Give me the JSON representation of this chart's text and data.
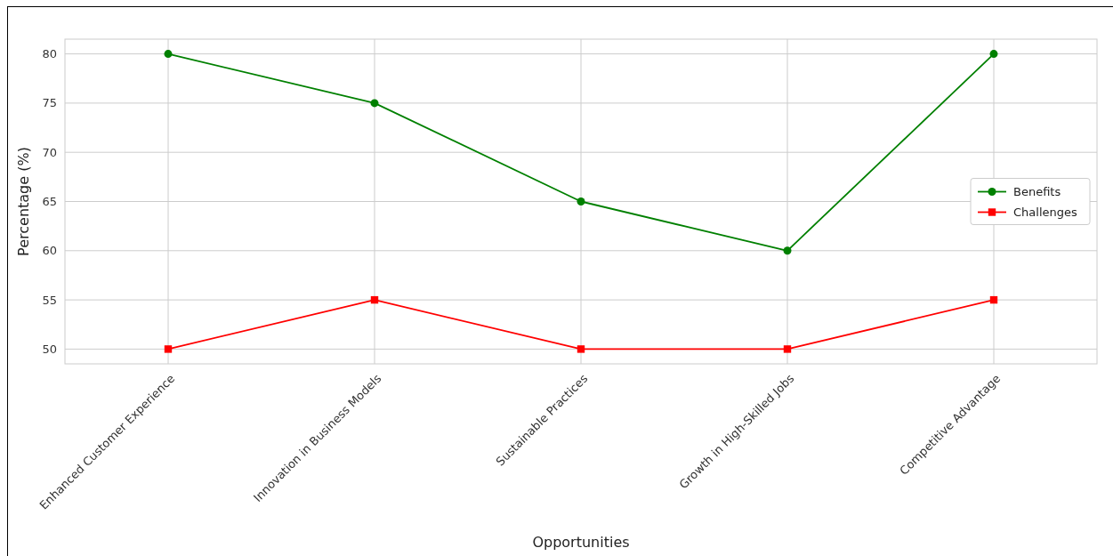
{
  "chart_data": {
    "type": "line",
    "xlabel": "Opportunities",
    "ylabel": "Percentage (%)",
    "categories": [
      "Enhanced Customer Experience",
      "Innovation in Business Models",
      "Sustainable Practices",
      "Growth in High-Skilled Jobs",
      "Competitive Advantage"
    ],
    "series": [
      {
        "name": "Benefits",
        "color": "#008000",
        "marker": "circle",
        "values": [
          80,
          75,
          65,
          60,
          80
        ]
      },
      {
        "name": "Challenges",
        "color": "#ff0000",
        "marker": "square",
        "values": [
          50,
          55,
          50,
          50,
          55
        ]
      }
    ],
    "ylim": [
      48.5,
      81.5
    ],
    "yticks": [
      50,
      55,
      60,
      65,
      70,
      75,
      80
    ],
    "grid": true,
    "legend": "right"
  }
}
